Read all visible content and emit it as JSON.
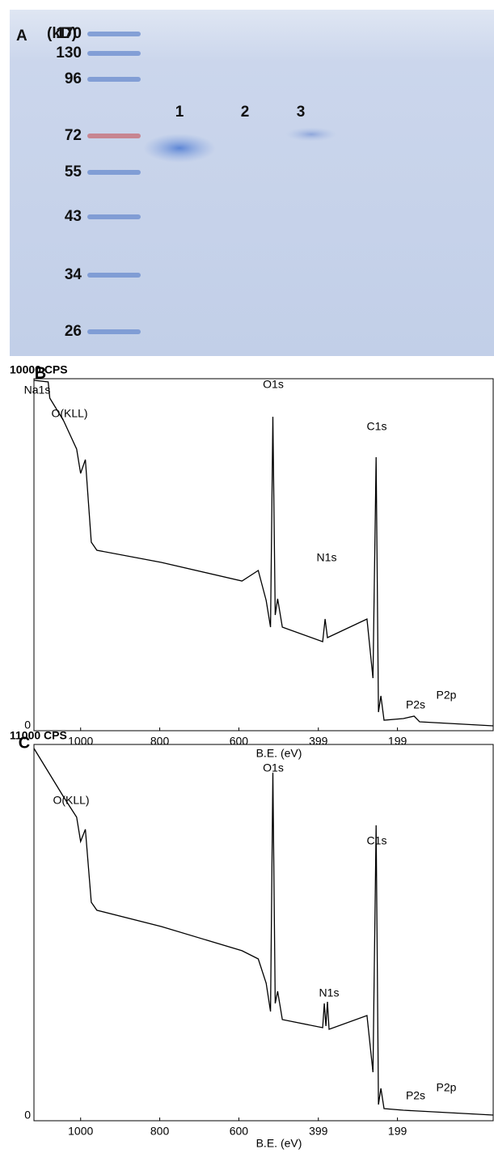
{
  "gel": {
    "panel_label": "A",
    "unit": "(kD)",
    "markers": [
      170,
      130,
      96,
      72,
      55,
      43,
      34,
      26
    ],
    "lanes": [
      "1",
      "2",
      "3"
    ]
  },
  "chart_data": [
    {
      "type": "line",
      "panel_label": "B",
      "xlabel": "B.E. (eV)",
      "color": "#000000",
      "xlim": [
        1118,
        -43
      ],
      "ylim": [
        0,
        10000
      ],
      "xticks": [
        1000,
        800,
        600,
        399,
        199
      ],
      "yticks": [
        0,
        {
          "value": 10000,
          "label": "10000 CPS"
        }
      ],
      "annotations": [
        "Na1s",
        "O(KLL)",
        "O1s",
        "N1s",
        "C1s",
        "P2s",
        "P2p"
      ],
      "x": [
        1118,
        1082,
        1078,
        1043,
        1010,
        1000,
        988,
        973,
        959,
        796,
        592,
        551,
        531,
        520,
        514,
        508,
        502,
        490,
        388,
        382,
        376,
        276,
        261,
        253,
        247,
        241,
        233,
        184,
        157,
        143,
        -43
      ],
      "values": [
        9955,
        9909,
        9449,
        8805,
        8000,
        7311,
        7701,
        5356,
        5126,
        4782,
        4253,
        4552,
        3701,
        2943,
        8920,
        3288,
        3747,
        2943,
        2529,
        3173,
        2644,
        3173,
        1494,
        7771,
        529,
        989,
        299,
        345,
        414,
        253,
        138
      ]
    },
    {
      "type": "line",
      "panel_label": "C",
      "xlabel": "B.E. (eV)",
      "color": "#000000",
      "xlim": [
        1118,
        -43
      ],
      "ylim": [
        0,
        11000
      ],
      "xticks": [
        1000,
        800,
        600,
        399,
        199
      ],
      "yticks": [
        0,
        {
          "value": 11000,
          "label": "11000 CPS"
        }
      ],
      "annotations": [
        "O(KLL)",
        "O1s",
        "N1s",
        "C1s",
        "P2s",
        "P2p"
      ],
      "x": [
        1118,
        1043,
        1010,
        1000,
        988,
        973,
        959,
        796,
        592,
        551,
        531,
        520,
        514,
        508,
        502,
        490,
        388,
        384,
        380,
        376,
        372,
        276,
        261,
        253,
        247,
        241,
        233,
        184,
        -43
      ],
      "values": [
        10884,
        9464,
        8873,
        8163,
        8518,
        6388,
        6152,
        5678,
        4969,
        4732,
        4022,
        3194,
        10174,
        3431,
        3786,
        2958,
        2721,
        3431,
        2768,
        3478,
        2674,
        3076,
        1420,
        8636,
        473,
        946,
        355,
        308,
        166
      ]
    }
  ]
}
